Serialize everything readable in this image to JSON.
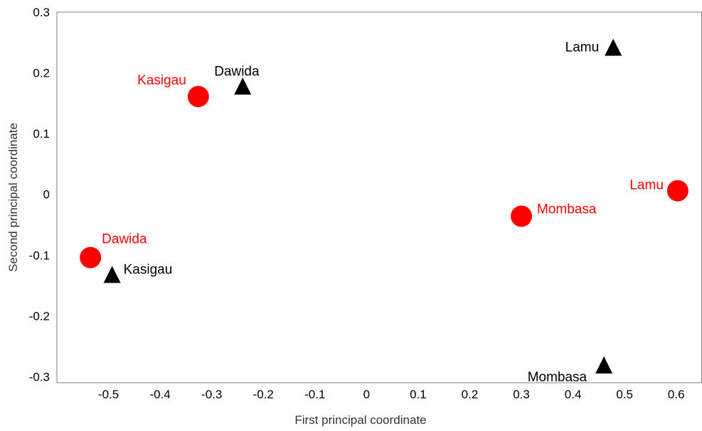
{
  "chart_data": {
    "type": "scatter",
    "title": "",
    "xlabel": "First principal coordinate",
    "ylabel": "Second principal coordinate",
    "xlim": [
      -0.6,
      0.65
    ],
    "ylim": [
      -0.31,
      0.3
    ],
    "x_ticks": [
      "-0.5",
      "-0.4",
      "-0.3",
      "-0.2",
      "-0.1",
      "0",
      "0.1",
      "0.2",
      "0.3",
      "0.4",
      "0.5",
      "0.6"
    ],
    "x_tick_values": [
      -0.5,
      -0.4,
      -0.3,
      -0.2,
      -0.1,
      0,
      0.1,
      0.2,
      0.3,
      0.4,
      0.5,
      0.6
    ],
    "y_ticks": [
      "0.3",
      "0.2",
      "0.1",
      "0",
      "-0.1",
      "-0.2",
      "-0.3"
    ],
    "y_tick_values": [
      0.3,
      0.2,
      0.1,
      0,
      -0.1,
      -0.2,
      -0.3
    ],
    "grid": false,
    "series": [
      {
        "marker": "circle",
        "color": "#ff0000",
        "points": [
          {
            "label": "Kasigau",
            "x": -0.326,
            "y": 0.161
          },
          {
            "label": "Dawida",
            "x": -0.535,
            "y": -0.104
          },
          {
            "label": "Mombasa",
            "x": 0.3,
            "y": -0.036
          },
          {
            "label": "Lamu",
            "x": 0.603,
            "y": 0.006
          }
        ]
      },
      {
        "marker": "triangle",
        "color": "#000000",
        "points": [
          {
            "label": "Dawida",
            "x": -0.24,
            "y": 0.177
          },
          {
            "label": "Kasigau",
            "x": -0.493,
            "y": -0.133
          },
          {
            "label": "Lamu",
            "x": 0.478,
            "y": 0.241
          },
          {
            "label": "Mombasa",
            "x": 0.46,
            "y": -0.282
          }
        ]
      }
    ]
  }
}
